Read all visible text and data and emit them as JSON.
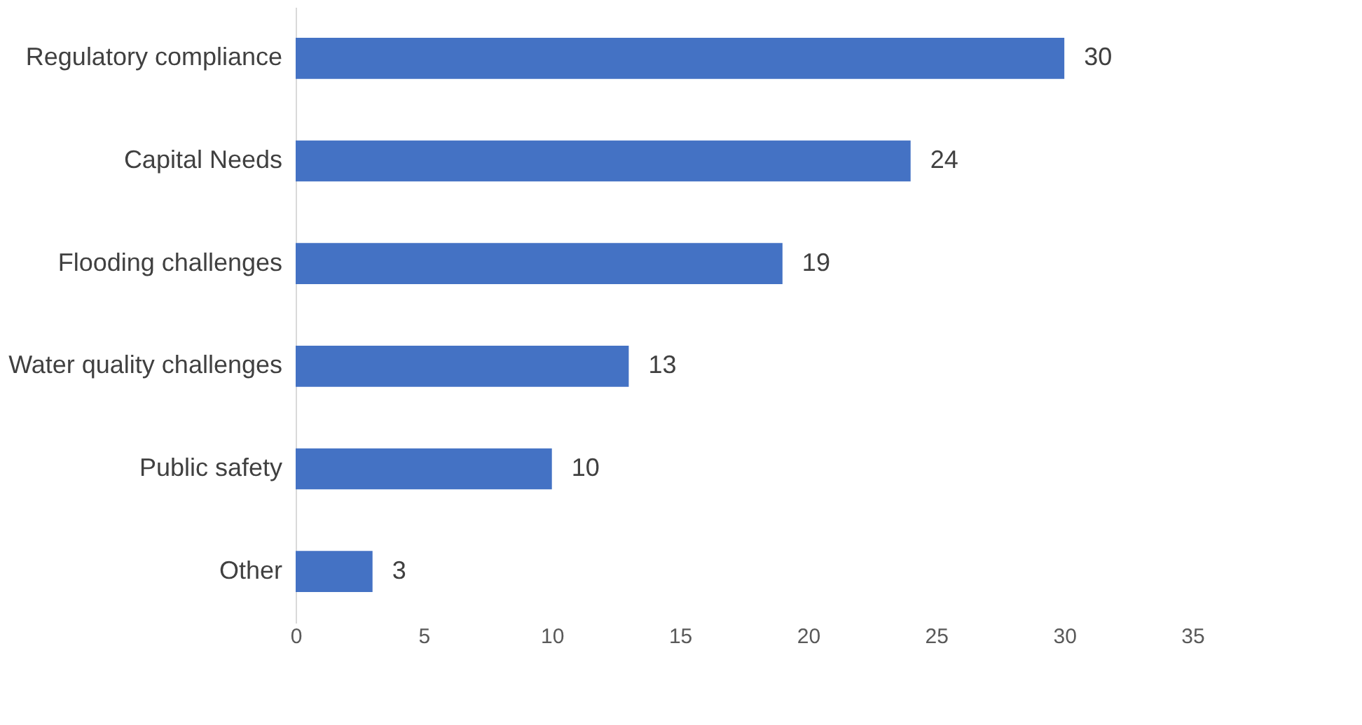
{
  "chart_data": {
    "type": "bar",
    "orientation": "horizontal",
    "categories": [
      "Regulatory compliance",
      "Capital Needs",
      "Flooding challenges",
      "Water quality challenges",
      "Public safety",
      "Other"
    ],
    "values": [
      30,
      24,
      19,
      13,
      10,
      3
    ],
    "color": "#4472c4",
    "data_labels": true,
    "xlim": [
      0,
      35
    ],
    "xticks": [
      0,
      5,
      10,
      15,
      20,
      25,
      30,
      35
    ],
    "grid": false
  }
}
